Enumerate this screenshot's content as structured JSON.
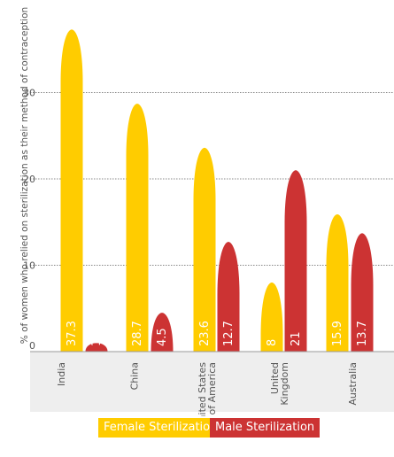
{
  "chart_data": {
    "type": "bar",
    "ylabel": "% of women who relied on sterilization as their method of contraception",
    "ylim": [
      0,
      40
    ],
    "yticks": [
      0,
      10,
      20,
      30
    ],
    "grid": true,
    "legend_position": "bottom-center",
    "categories": [
      "India",
      "China",
      "United States of America",
      "United Kingdom",
      "Australia"
    ],
    "category_lines": [
      [
        "India"
      ],
      [
        "China"
      ],
      [
        "United States",
        "of America"
      ],
      [
        "United",
        "Kingdom"
      ],
      [
        "Australia"
      ]
    ],
    "series": [
      {
        "name": "Female Sterilization",
        "color": "#FFCC00",
        "values": [
          37.3,
          28.7,
          23.6,
          8,
          15.9
        ]
      },
      {
        "name": "Male Sterilization",
        "color": "#CC3333",
        "values": [
          1,
          4.5,
          12.7,
          21,
          13.7
        ]
      }
    ],
    "data_labels": [
      [
        "37.3",
        "28.7",
        "23.6",
        "8",
        "15.9"
      ],
      [
        "1",
        "4.5",
        "12.7",
        "21",
        "13.7"
      ]
    ]
  }
}
